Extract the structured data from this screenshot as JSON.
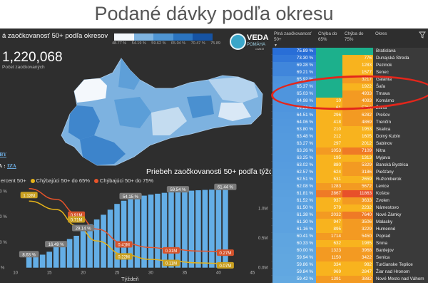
{
  "page_title": "Podané dávky podľa okresu",
  "map": {
    "title": "á zaočkovanosť 50+ podľa okresov",
    "scale_labels": [
      "48.77 %",
      "54.19 %",
      "59.62 %",
      "65.04 %",
      "70.47 %",
      "75.89"
    ],
    "scale_colors": [
      "#f4f8fc",
      "#b9d6ee",
      "#7fb4e0",
      "#4f95d3",
      "#2b74c0",
      "#1653a3"
    ],
    "total": "1,220,068",
    "total_label": "Počet zaočkovaných",
    "source_line1": "BY",
    "source_prefix": "A : ",
    "source_link": "IZA"
  },
  "logo": {
    "name": "VEDA",
    "sub": "POMÁHA",
    "tag": "covid19"
  },
  "chart_data": {
    "type": "bar+line",
    "title": "Priebeh zaočkovanosti 50+ podľa týždňov",
    "xlabel": "Týždeň",
    "x_ticks": [
      10,
      15,
      20,
      25,
      30,
      35,
      40,
      45
    ],
    "y_left_ticks": [
      "0 %",
      "20 %",
      "40 %",
      "60 %"
    ],
    "y_right_ticks": [
      "0.0M",
      "0.5M",
      "1.0M"
    ],
    "ylim_left": [
      0,
      60
    ],
    "ylim_right": [
      0,
      1.3
    ],
    "xlim": [
      10,
      45
    ],
    "legend": [
      {
        "label": "ercent 50+",
        "color": "#64aee6"
      },
      {
        "label": "Chýbajúci 50+ do 65%",
        "color": "#e6b319"
      },
      {
        "label": "Chýbajúci 50+ do 75%",
        "color": "#e8542a"
      }
    ],
    "weeks": [
      12,
      13,
      14,
      15,
      16,
      17,
      18,
      19,
      20,
      21,
      22,
      23,
      24,
      25,
      26,
      27,
      28,
      29,
      30,
      31,
      32,
      33,
      34,
      35,
      36,
      37,
      38,
      39,
      40,
      41
    ],
    "percent": [
      8.63,
      9.0,
      10.2,
      12.5,
      16.49,
      20.5,
      22.5,
      25.0,
      29.14,
      34.0,
      37.8,
      41.5,
      45.5,
      50.0,
      52.5,
      54.15,
      55.5,
      56.5,
      57.3,
      58.0,
      58.7,
      59.2,
      59.54,
      60.0,
      60.4,
      60.7,
      61.0,
      61.2,
      61.3,
      61.44
    ],
    "percent_labels": [
      {
        "week": 12,
        "text": "8.63 %"
      },
      {
        "week": 16,
        "text": "16.49 %"
      },
      {
        "week": 20,
        "text": "29.14 %"
      },
      {
        "week": 27,
        "text": "54.15 %"
      },
      {
        "week": 34,
        "text": "59.54 %"
      },
      {
        "week": 41,
        "text": "61.44 %"
      }
    ],
    "missing65": [
      {
        "week": 12,
        "value": 1.12
      },
      {
        "week": 16,
        "value": 0.98
      },
      {
        "week": 19,
        "value": 0.71
      },
      {
        "week": 22,
        "value": 0.45
      },
      {
        "week": 26,
        "value": 0.22
      },
      {
        "week": 30,
        "value": 0.14
      },
      {
        "week": 33,
        "value": 0.11
      },
      {
        "week": 37,
        "value": 0.08
      },
      {
        "week": 41,
        "value": 0.07
      }
    ],
    "missing75": [
      {
        "week": 12,
        "value": 1.33
      },
      {
        "week": 16,
        "value": 1.15
      },
      {
        "week": 19,
        "value": 0.91
      },
      {
        "week": 22,
        "value": 0.65
      },
      {
        "week": 26,
        "value": 0.41
      },
      {
        "week": 30,
        "value": 0.34
      },
      {
        "week": 33,
        "value": 0.31
      },
      {
        "week": 37,
        "value": 0.28
      },
      {
        "week": 41,
        "value": 0.27
      }
    ],
    "missing65_labels": [
      {
        "week": 12,
        "text": "1.12M"
      },
      {
        "week": 19,
        "text": "0.71M"
      },
      {
        "week": 26,
        "text": "0.22M"
      },
      {
        "week": 33,
        "text": "0.11M"
      },
      {
        "week": 41,
        "text": "0.07M"
      }
    ],
    "missing75_labels": [
      {
        "week": 19,
        "text": "0.91M"
      },
      {
        "week": 26,
        "text": "0.41M"
      },
      {
        "week": 33,
        "text": "0.31M"
      },
      {
        "week": 41,
        "text": "0.27M"
      }
    ]
  },
  "table": {
    "headers": [
      "Plná zaočkovanosť 50+",
      "Chýba do 65%",
      "Chýba do 75%",
      "Okres"
    ],
    "rows": [
      [
        "75.89 %",
        "",
        "",
        "Bratislava"
      ],
      [
        "73.30 %",
        "",
        "776",
        "Dunajská Streda"
      ],
      [
        "69.28 %",
        "",
        "1283",
        "Pezinok"
      ],
      [
        "69.21 %",
        "",
        "1577",
        "Senec"
      ],
      [
        "65.92 %",
        "",
        "3217",
        "Galanta"
      ],
      [
        "65.37 %",
        "",
        "1922",
        "Šaľa"
      ],
      [
        "65.03 %",
        "",
        "4933",
        "Trnava"
      ],
      [
        "64.98 %",
        "10",
        "4093",
        "Komárno"
      ],
      [
        "64.89 %",
        "61",
        "5716",
        "Žilina"
      ],
      [
        "64.51 %",
        "296",
        "6282",
        "Prešov"
      ],
      [
        "64.06 %",
        "418",
        "4869",
        "Trenčín"
      ],
      [
        "63.80 %",
        "210",
        "1953",
        "Skalica"
      ],
      [
        "63.48 %",
        "212",
        "1605",
        "Dolný Kubín"
      ],
      [
        "63.27 %",
        "297",
        "2012",
        "Sabinov"
      ],
      [
        "63.26 %",
        "1053",
        "7109",
        "Nitra"
      ],
      [
        "63.25 %",
        "195",
        "1313",
        "Myjava"
      ],
      [
        "63.02 %",
        "880",
        "5329",
        "Banská Bystrica"
      ],
      [
        "62.57 %",
        "624",
        "3186",
        "Piešťany"
      ],
      [
        "62.51 %",
        "531",
        "2659",
        "Ružomberok"
      ],
      [
        "62.08 %",
        "1283",
        "5672",
        "Levice"
      ],
      [
        "61.81 %",
        "2867",
        "11863",
        "Košice"
      ],
      [
        "61.52 %",
        "937",
        "3633",
        "Zvolen"
      ],
      [
        "61.50 %",
        "579",
        "2232",
        "Námestovo"
      ],
      [
        "61.38 %",
        "2032",
        "7640",
        "Nové Zámky"
      ],
      [
        "61.30 %",
        "947",
        "3506",
        "Malacky"
      ],
      [
        "61.16 %",
        "895",
        "3229",
        "Humenné"
      ],
      [
        "60.41 %",
        "1714",
        "5450",
        "Poprad"
      ],
      [
        "60.33 %",
        "632",
        "1985",
        "Snina"
      ],
      [
        "60.00 %",
        "1323",
        "3968",
        "Bardejov"
      ],
      [
        "59.94 %",
        "1150",
        "3422",
        "Senica"
      ],
      [
        "59.86 %",
        "334",
        "982",
        "Turčianske Teplice"
      ],
      [
        "59.84 %",
        "969",
        "2847",
        "Žiar nad Hronom"
      ],
      [
        "59.42 %",
        "1391",
        "3882",
        "Nové Mesto nad Váhom"
      ]
    ]
  },
  "colors": {
    "ok": "#1cb08c",
    "low": "#f8b31e",
    "mid": "#f39a22",
    "high": "#ef7a26",
    "max": "#e8502a",
    "bar": "#64aee6"
  }
}
